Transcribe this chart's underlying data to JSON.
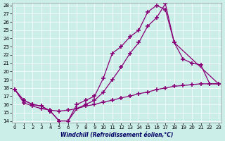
{
  "xlabel": "Windchill (Refroidissement éolien,°C)",
  "bg_color": "#cceee8",
  "line_color": "#880077",
  "grid_color": "#aadddd",
  "ylim": [
    14,
    28
  ],
  "xlim": [
    0,
    23
  ],
  "yticks": [
    14,
    15,
    16,
    17,
    18,
    19,
    20,
    21,
    22,
    23,
    24,
    25,
    26,
    27,
    28
  ],
  "xticks": [
    0,
    1,
    2,
    3,
    4,
    5,
    6,
    7,
    8,
    9,
    10,
    11,
    12,
    13,
    14,
    15,
    16,
    17,
    18,
    19,
    20,
    21,
    22,
    23
  ],
  "line1_x": [
    0,
    1,
    2,
    3,
    4,
    5,
    6,
    7,
    8,
    9,
    10,
    11,
    12,
    13,
    14,
    15,
    16,
    17,
    18,
    19,
    20,
    21,
    22,
    23
  ],
  "line1_y": [
    17.8,
    16.5,
    16.0,
    15.8,
    15.2,
    14.0,
    14.0,
    16.0,
    16.5,
    17.0,
    19.2,
    22.2,
    23.0,
    24.2,
    25.0,
    27.2,
    28.0,
    27.5,
    23.5,
    21.5,
    21.0,
    20.8,
    18.5,
    18.5
  ],
  "line2_x": [
    0,
    1,
    2,
    3,
    4,
    5,
    6,
    7,
    8,
    9,
    10,
    11,
    12,
    13,
    14,
    15,
    16,
    17,
    18,
    23
  ],
  "line2_y": [
    17.8,
    16.5,
    16.0,
    15.8,
    15.2,
    14.0,
    14.0,
    15.5,
    16.0,
    16.5,
    17.5,
    19.0,
    20.5,
    22.2,
    23.5,
    25.5,
    26.5,
    28.2,
    23.5,
    18.5
  ],
  "line3_x": [
    0,
    1,
    2,
    3,
    4,
    5,
    6,
    7,
    8,
    9,
    10,
    11,
    12,
    13,
    14,
    15,
    16,
    17,
    18,
    19,
    20,
    21,
    22,
    23
  ],
  "line3_y": [
    17.8,
    16.2,
    15.8,
    15.5,
    15.3,
    15.2,
    15.3,
    15.5,
    15.8,
    16.0,
    16.3,
    16.5,
    16.8,
    17.0,
    17.3,
    17.5,
    17.8,
    18.0,
    18.2,
    18.3,
    18.4,
    18.5,
    18.5,
    18.5
  ]
}
